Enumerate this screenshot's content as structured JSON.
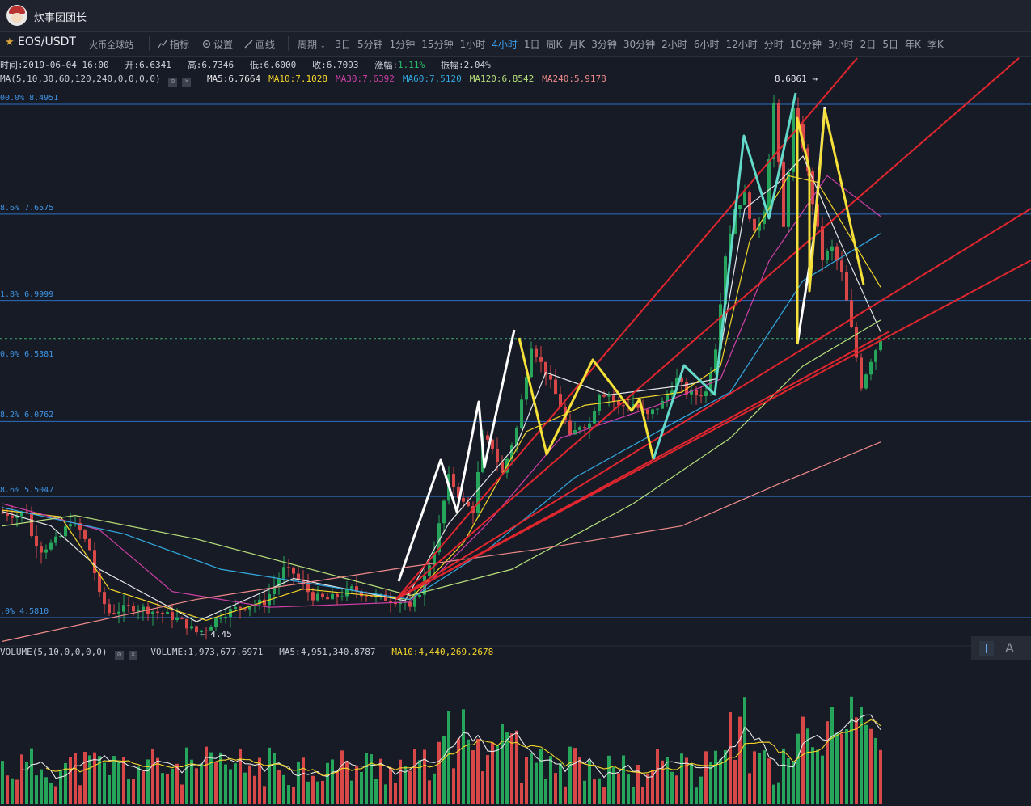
{
  "app": {
    "title": "炊事团团长"
  },
  "toolbar": {
    "pair": "EOS/USDT",
    "exchange": "火币全球站",
    "indicators_label": "指标",
    "settings_label": "设置",
    "draw_label": "画线",
    "period_label": "周期",
    "periods": [
      "3日",
      "5分钟",
      "1分钟",
      "15分钟",
      "1小时",
      "4小时",
      "1日",
      "周K",
      "月K",
      "3分钟",
      "30分钟",
      "2小时",
      "6小时",
      "12小时",
      "分时",
      "10分钟",
      "3小时",
      "2日",
      "5日",
      "年K",
      "季K"
    ],
    "active_period": "4小时"
  },
  "info": {
    "time": "时间:2019-06-04 16:00",
    "open": "开:6.6341",
    "high": "高:6.7346",
    "low": "低:6.6000",
    "close": "收:6.7093",
    "change_label": "涨幅:",
    "change_value": "1.11%",
    "amplitude": "振幅:2.04%"
  },
  "ma_legend": {
    "header": "MA(5,10,30,60,120,240,0,0,0,0)",
    "items": [
      {
        "text": "MA5:6.7664",
        "color": "#e6e6e6"
      },
      {
        "text": "MA10:7.1028",
        "color": "#f5d62a"
      },
      {
        "text": "MA30:7.6392",
        "color": "#d040a8"
      },
      {
        "text": "MA60:7.5120",
        "color": "#33a9e0"
      },
      {
        "text": "MA120:6.8542",
        "color": "#b8e07a"
      },
      {
        "text": "MA240:5.9178",
        "color": "#f08a8a"
      }
    ]
  },
  "volume_legend": {
    "header": "VOLUME(5,10,0,0,0,0)",
    "volume": "VOLUME:1,973,677.6971",
    "ma5": "MA5:4,951,340.8787",
    "ma10": "MA10:4,440,269.2678"
  },
  "fib_levels": [
    {
      "label": "00.0% 8.4951",
      "value": 8.4951
    },
    {
      "label": "8.6% 7.6575",
      "value": 7.6575
    },
    {
      "label": "1.8% 6.9999",
      "value": 6.9999
    },
    {
      "label": "0.0% 6.5381",
      "value": 6.5381
    },
    {
      "label": "8.2% 6.0762",
      "value": 6.0762
    },
    {
      "label": "8.6% 5.5047",
      "value": 5.5047
    },
    {
      "label": ".0% 4.5810",
      "value": 4.581
    }
  ],
  "annotations": {
    "peak": "8.6861 →",
    "low": "← 4.45"
  },
  "colors": {
    "background": "#171b26",
    "up": "#26a65b",
    "down": "#d94848",
    "fib_line": "#2e6fc4",
    "trend_line": "#e0262e",
    "wave_white": "#ffffff",
    "wave_yellow": "#f5e03a",
    "wave_cyan": "#63d9c9"
  },
  "chart_data": {
    "type": "candlestick",
    "title": "EOS/USDT 4小时",
    "ylim": [
      4.3,
      8.8
    ],
    "current_price": 6.7093,
    "price_path": [
      [
        0,
        5.38
      ],
      [
        3,
        5.36
      ],
      [
        5,
        5.4
      ],
      [
        6,
        5.2
      ],
      [
        8,
        5.1
      ],
      [
        10,
        5.14
      ],
      [
        12,
        5.2
      ],
      [
        14,
        5.32
      ],
      [
        16,
        5.24
      ],
      [
        18,
        5.1
      ],
      [
        20,
        4.75
      ],
      [
        22,
        4.62
      ],
      [
        25,
        4.65
      ],
      [
        28,
        4.66
      ],
      [
        31,
        4.63
      ],
      [
        34,
        4.6
      ],
      [
        37,
        4.55
      ],
      [
        40,
        4.47
      ],
      [
        42,
        4.5
      ],
      [
        45,
        4.6
      ],
      [
        48,
        4.65
      ],
      [
        51,
        4.68
      ],
      [
        54,
        4.7
      ],
      [
        56,
        4.82
      ],
      [
        58,
        4.95
      ],
      [
        60,
        4.92
      ],
      [
        62,
        4.82
      ],
      [
        64,
        4.74
      ],
      [
        67,
        4.72
      ],
      [
        70,
        4.76
      ],
      [
        72,
        4.8
      ],
      [
        74,
        4.77
      ],
      [
        77,
        4.74
      ],
      [
        80,
        4.72
      ],
      [
        83,
        4.7
      ],
      [
        84,
        4.64
      ],
      [
        86,
        4.78
      ],
      [
        89,
        5.1
      ],
      [
        92,
        5.65
      ],
      [
        95,
        5.45
      ],
      [
        97,
        5.4
      ],
      [
        99,
        5.95
      ],
      [
        101,
        5.88
      ],
      [
        103,
        5.68
      ],
      [
        106,
        6.02
      ],
      [
        109,
        6.66
      ],
      [
        112,
        6.45
      ],
      [
        115,
        6.2
      ],
      [
        117,
        5.95
      ],
      [
        119,
        6.05
      ],
      [
        121,
        6.06
      ],
      [
        123,
        6.3
      ],
      [
        125,
        6.28
      ],
      [
        127,
        6.19
      ],
      [
        130,
        6.21
      ],
      [
        133,
        6.12
      ],
      [
        136,
        6.22
      ],
      [
        139,
        6.4
      ],
      [
        141,
        6.3
      ],
      [
        143,
        6.28
      ],
      [
        145,
        6.3
      ],
      [
        147,
        6.65
      ],
      [
        149,
        7.35
      ],
      [
        151,
        7.7
      ],
      [
        153,
        7.8
      ],
      [
        155,
        7.5
      ],
      [
        157,
        7.7
      ],
      [
        159,
        8.5
      ],
      [
        161,
        7.55
      ],
      [
        163,
        8.45
      ],
      [
        165,
        8.18
      ],
      [
        167,
        7.75
      ],
      [
        169,
        7.32
      ],
      [
        171,
        7.4
      ],
      [
        173,
        7.2
      ],
      [
        175,
        6.78
      ],
      [
        177,
        6.35
      ],
      [
        179,
        6.55
      ],
      [
        181,
        6.71
      ]
    ],
    "moving_averages": [
      {
        "name": "MA5",
        "color": "#e6e6e6",
        "points": [
          [
            0,
            5.39
          ],
          [
            10,
            5.28
          ],
          [
            20,
            4.95
          ],
          [
            40,
            4.55
          ],
          [
            60,
            4.88
          ],
          [
            83,
            4.71
          ],
          [
            92,
            5.3
          ],
          [
            106,
            5.9
          ],
          [
            112,
            6.45
          ],
          [
            125,
            6.28
          ],
          [
            140,
            6.35
          ],
          [
            147,
            6.4
          ],
          [
            153,
            7.7
          ],
          [
            160,
            7.9
          ],
          [
            165,
            8.1
          ],
          [
            172,
            7.5
          ],
          [
            181,
            6.76
          ]
        ]
      },
      {
        "name": "MA10",
        "color": "#f5d62a",
        "points": [
          [
            0,
            5.4
          ],
          [
            12,
            5.35
          ],
          [
            22,
            4.8
          ],
          [
            42,
            4.56
          ],
          [
            62,
            4.8
          ],
          [
            84,
            4.72
          ],
          [
            95,
            5.15
          ],
          [
            108,
            6.0
          ],
          [
            120,
            6.2
          ],
          [
            140,
            6.3
          ],
          [
            148,
            6.5
          ],
          [
            154,
            7.45
          ],
          [
            162,
            7.95
          ],
          [
            168,
            7.9
          ],
          [
            181,
            7.1
          ]
        ]
      },
      {
        "name": "MA30",
        "color": "#d040a8",
        "points": [
          [
            0,
            5.45
          ],
          [
            20,
            5.25
          ],
          [
            35,
            4.78
          ],
          [
            55,
            4.66
          ],
          [
            84,
            4.7
          ],
          [
            100,
            5.3
          ],
          [
            115,
            5.95
          ],
          [
            135,
            6.2
          ],
          [
            148,
            6.4
          ],
          [
            158,
            7.3
          ],
          [
            170,
            7.95
          ],
          [
            181,
            7.64
          ]
        ]
      },
      {
        "name": "MA60",
        "color": "#33a9e0",
        "points": [
          [
            0,
            5.42
          ],
          [
            25,
            5.22
          ],
          [
            45,
            4.95
          ],
          [
            84,
            4.72
          ],
          [
            100,
            5.1
          ],
          [
            118,
            5.65
          ],
          [
            140,
            6.1
          ],
          [
            150,
            6.3
          ],
          [
            165,
            7.15
          ],
          [
            181,
            7.51
          ]
        ]
      },
      {
        "name": "MA120",
        "color": "#b8e07a",
        "points": [
          [
            0,
            5.28
          ],
          [
            15,
            5.36
          ],
          [
            40,
            5.18
          ],
          [
            84,
            4.75
          ],
          [
            105,
            4.95
          ],
          [
            130,
            5.45
          ],
          [
            150,
            5.95
          ],
          [
            165,
            6.5
          ],
          [
            181,
            6.85
          ]
        ]
      },
      {
        "name": "MA240",
        "color": "#f08a8a",
        "points": [
          [
            0,
            4.4
          ],
          [
            40,
            4.72
          ],
          [
            84,
            4.97
          ],
          [
            110,
            5.1
          ],
          [
            140,
            5.28
          ],
          [
            160,
            5.6
          ],
          [
            181,
            5.92
          ]
        ]
      }
    ]
  }
}
